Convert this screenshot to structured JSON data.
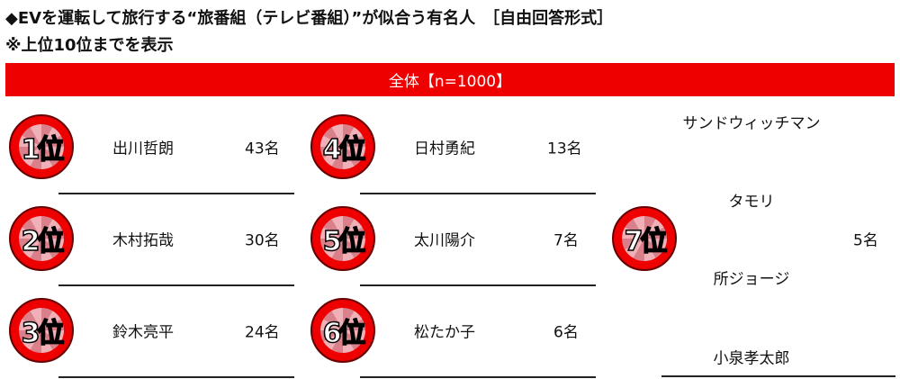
{
  "title": "◆EVを運転して旅行する“旅番組（テレビ番組）”が似合う有名人　［自由回答形式］",
  "subtitle": "※上位10位までを表示",
  "header": "全体【n=1000】",
  "ranks": [
    {
      "rank": "1位",
      "names": [
        "出川哲朗"
      ],
      "count": "43名"
    },
    {
      "rank": "2位",
      "names": [
        "木村拓哉"
      ],
      "count": "30名"
    },
    {
      "rank": "3位",
      "names": [
        "鈴木亮平"
      ],
      "count": "24名"
    },
    {
      "rank": "4位",
      "names": [
        "日村勇紀"
      ],
      "count": "13名"
    },
    {
      "rank": "5位",
      "names": [
        "太川陽介"
      ],
      "count": "7名"
    },
    {
      "rank": "6位",
      "names": [
        "松たか子"
      ],
      "count": "6名"
    },
    {
      "rank": "7位",
      "names": [
        "サンドウィッチマン",
        "タモリ",
        "所ジョージ",
        "小泉孝太郎"
      ],
      "count": "5名"
    }
  ],
  "colors": {
    "accent": "#ee0000"
  }
}
